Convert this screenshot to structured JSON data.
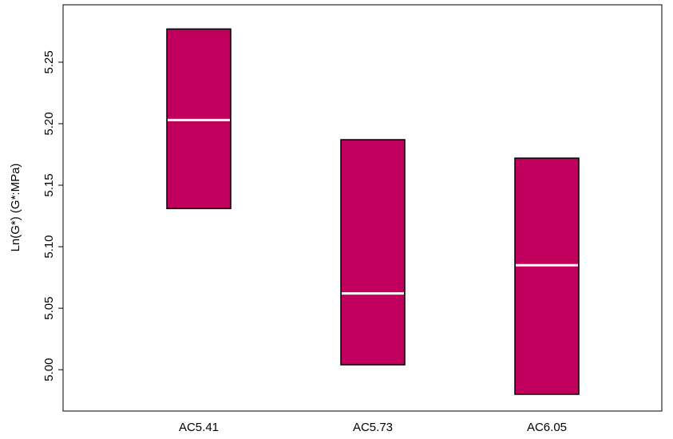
{
  "chart_data": {
    "type": "box",
    "title": "",
    "xlabel": "",
    "ylabel": "Ln(G*) (G*:MPa)",
    "ylim": [
      4.98,
      5.285
    ],
    "yticks": [
      5.0,
      5.05,
      5.1,
      5.15,
      5.2,
      5.25
    ],
    "ytick_labels": [
      "5.00",
      "5.05",
      "5.10",
      "5.15",
      "5.20",
      "5.25"
    ],
    "categories": [
      "AC5.41",
      "AC5.73",
      "AC6.05"
    ],
    "boxes": [
      {
        "category": "AC5.41",
        "low": 5.131,
        "median": 5.203,
        "high": 5.277
      },
      {
        "category": "AC5.73",
        "low": 5.004,
        "median": 5.062,
        "high": 5.187
      },
      {
        "category": "AC6.05",
        "low": 4.98,
        "median": 5.085,
        "high": 5.172
      }
    ],
    "grid": false,
    "legend": "none",
    "colors": {
      "box_fill": "#C0005C",
      "box_stroke": "#000000",
      "median_line": "#ffffff",
      "axis": "#000000"
    }
  }
}
